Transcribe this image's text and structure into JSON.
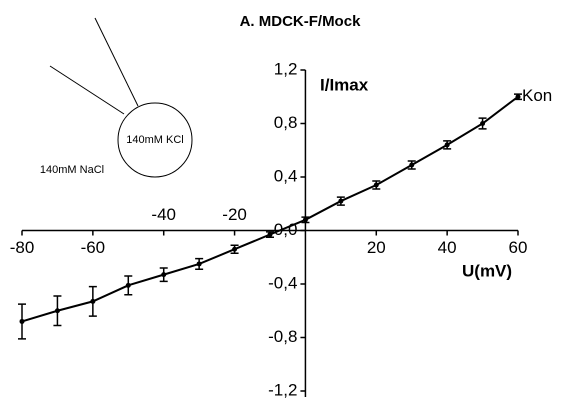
{
  "chart_data": {
    "type": "line",
    "title": "A. MDCK-F/Mock",
    "xlabel": "U(mV)",
    "ylabel": "I/Imax",
    "annotations": [
      "140mM KCl",
      "140mM NaCl"
    ],
    "x": [
      -80,
      -70,
      -60,
      -50,
      -40,
      -30,
      -20,
      -10,
      0,
      10,
      20,
      30,
      40,
      50,
      60
    ],
    "series": [
      {
        "name": "Kon",
        "color": "#000000",
        "values": [
          -0.68,
          -0.6,
          -0.53,
          -0.41,
          -0.33,
          -0.25,
          -0.14,
          -0.03,
          0.08,
          0.22,
          0.34,
          0.49,
          0.64,
          0.8,
          1.0
        ],
        "errors": [
          0.13,
          0.11,
          0.11,
          0.07,
          0.05,
          0.04,
          0.03,
          0.02,
          0.02,
          0.03,
          0.03,
          0.03,
          0.03,
          0.04,
          0.02
        ]
      }
    ],
    "xlim": [
      -80,
      60
    ],
    "ylim": [
      -1.2,
      1.2
    ],
    "xticks": [
      -80,
      -60,
      -40,
      -20,
      20,
      40,
      60
    ],
    "yticks": [
      {
        "value": -1.2,
        "label": "-1,2"
      },
      {
        "value": -0.8,
        "label": "-0,8"
      },
      {
        "value": -0.4,
        "label": "-0,4"
      },
      {
        "value": 0.0,
        "label": "0,0"
      },
      {
        "value": 0.4,
        "label": "0,4"
      },
      {
        "value": 0.8,
        "label": "0,8"
      },
      {
        "value": 1.2,
        "label": "1,2"
      }
    ]
  }
}
